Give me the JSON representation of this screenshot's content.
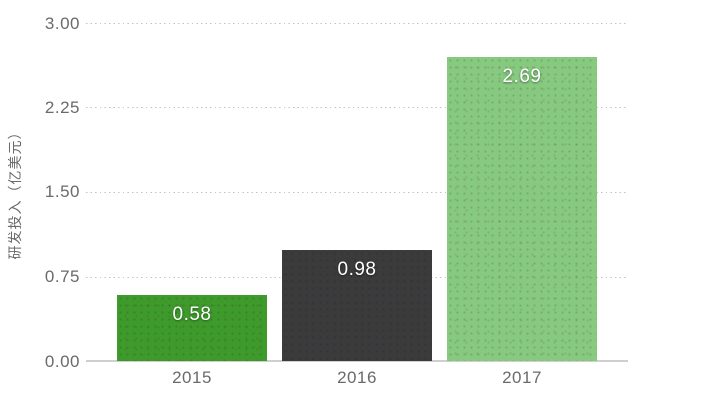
{
  "chart_data": {
    "type": "bar",
    "title": "",
    "categories": [
      "2015",
      "2016",
      "2017"
    ],
    "values": [
      0.58,
      0.98,
      2.69
    ],
    "value_labels": [
      "0.58",
      "0.98",
      "2.69"
    ],
    "xlabel": "",
    "ylabel": "研发投入（亿美元）",
    "yticks": [
      "3.00",
      "2.25",
      "1.50",
      "0.75",
      "0.00"
    ],
    "ytick_values": [
      3.0,
      2.25,
      1.5,
      0.75,
      0.0
    ],
    "ylim": [
      0,
      3.0
    ],
    "grid": "horizontal-dotted",
    "legend": "none",
    "bar_colors": [
      "#3e9b2b",
      "#3b3b3b",
      "#87ca7f"
    ],
    "value_label_color": "#ffffff",
    "axis_text_color": "#6a6a6a",
    "gridline_color": "#c3c3c3",
    "baseline_color": "#cfcfcf",
    "background_color": "#ffffff"
  }
}
